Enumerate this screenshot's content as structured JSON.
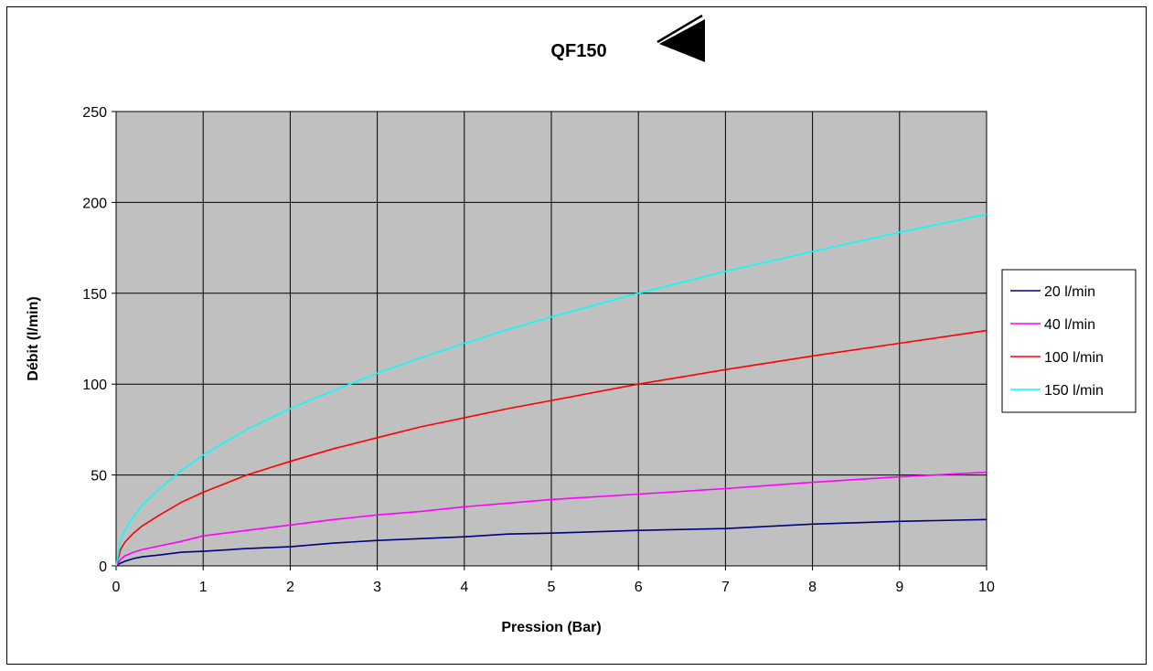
{
  "chart_data": {
    "type": "line",
    "title": "QF150",
    "xlabel": "Pression (Bar)",
    "ylabel": "Débit (l/min)",
    "xlim": [
      0,
      10
    ],
    "ylim": [
      0,
      250
    ],
    "xticks": [
      0,
      1,
      2,
      3,
      4,
      5,
      6,
      7,
      8,
      9,
      10
    ],
    "yticks": [
      0,
      50,
      100,
      150,
      200,
      250
    ],
    "grid": true,
    "plot_background": "#c0c0c0",
    "legend_position": "right",
    "series": [
      {
        "name": "20 l/min",
        "color": "#000080",
        "x": [
          0,
          0.05,
          0.1,
          0.2,
          0.3,
          0.5,
          0.75,
          1,
          1.5,
          2,
          2.5,
          3,
          3.5,
          4,
          4.5,
          5,
          6,
          7,
          8,
          9,
          10
        ],
        "y": [
          0,
          1.5,
          2.5,
          4,
          5,
          6,
          7.5,
          8,
          9.5,
          10.5,
          12.5,
          14,
          15,
          16,
          17.5,
          18,
          19.5,
          20.5,
          23,
          24.5,
          25.5
        ]
      },
      {
        "name": "40 l/min",
        "color": "#ff00ff",
        "x": [
          0,
          0.05,
          0.1,
          0.2,
          0.3,
          0.5,
          0.75,
          1,
          1.5,
          2,
          2.5,
          3,
          3.5,
          4,
          4.5,
          5,
          6,
          7,
          8,
          9,
          10
        ],
        "y": [
          0,
          3.5,
          5.5,
          7.5,
          9,
          11,
          13.5,
          16.5,
          19.5,
          22.5,
          25.5,
          28,
          30,
          32.5,
          34.5,
          36.5,
          39.5,
          42.5,
          46,
          49,
          51.5
        ]
      },
      {
        "name": "100 l/min",
        "color": "#ff0000",
        "x": [
          0,
          0.05,
          0.1,
          0.2,
          0.3,
          0.5,
          0.75,
          1,
          1.5,
          2,
          2.5,
          3,
          3.5,
          4,
          4.5,
          5,
          6,
          7,
          8,
          9,
          10
        ],
        "y": [
          0,
          9,
          13,
          18,
          22,
          28,
          35,
          40.5,
          50,
          57.5,
          64.5,
          70.5,
          76.5,
          81.5,
          86.5,
          91,
          100,
          108,
          115.5,
          122.5,
          129.5
        ]
      },
      {
        "name": "150 l/min",
        "color": "#00ffff",
        "x": [
          0,
          0.05,
          0.1,
          0.2,
          0.3,
          0.5,
          0.75,
          1,
          1.5,
          2,
          2.5,
          3,
          3.5,
          4,
          4.5,
          5,
          6,
          7,
          8,
          9,
          10
        ],
        "y": [
          0,
          13.5,
          19.5,
          27,
          33.5,
          42.5,
          52.5,
          61,
          75,
          86.5,
          96.5,
          106,
          114.5,
          122.5,
          130,
          137,
          150,
          162,
          173,
          183.5,
          193.5
        ]
      }
    ]
  }
}
